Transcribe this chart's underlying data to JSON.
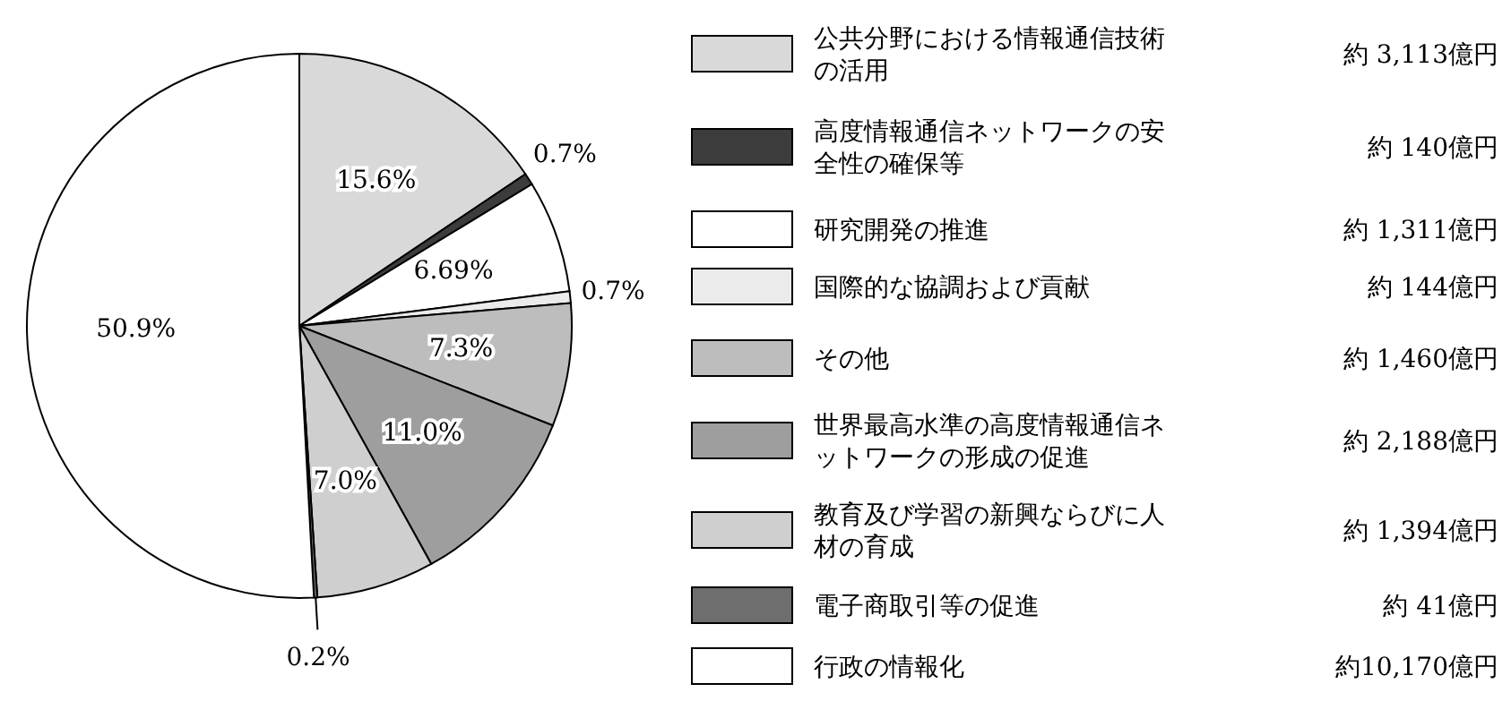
{
  "chart_data": {
    "type": "pie",
    "categories": [
      "公共分野における情報通信技術の活用",
      "高度情報通信ネットワークの安全性の確保等",
      "研究開発の推進",
      "国際的な協調および貢献",
      "その他",
      "世界最高水準の高度情報通信ネットワークの形成の促進",
      "教育及び学習の新興ならびに人材の育成",
      "電子商取引等の促進",
      "行政の情報化"
    ],
    "values": [
      15.6,
      0.7,
      6.69,
      0.7,
      7.3,
      11.0,
      7.0,
      0.2,
      50.9
    ],
    "value_labels": [
      "15.6%",
      "0.7%",
      "6.69%",
      "0.7%",
      "7.3%",
      "11.0%",
      "7.0%",
      "0.2%",
      "50.9%"
    ],
    "colors": [
      "#d9d9d9",
      "#3c3c3c",
      "#ffffff",
      "#ebebeb",
      "#bdbdbd",
      "#9e9e9e",
      "#cfcfcf",
      "#6e6e6e",
      "#ffffff"
    ],
    "annotations": [
      "約 3,113億円",
      "約 140億円",
      "約 1,311億円",
      "約 144億円",
      "約 1,460億円",
      "約 2,188億円",
      "約 1,394億円",
      "約 41億円",
      "約10,170億円"
    ],
    "legend": "right"
  }
}
